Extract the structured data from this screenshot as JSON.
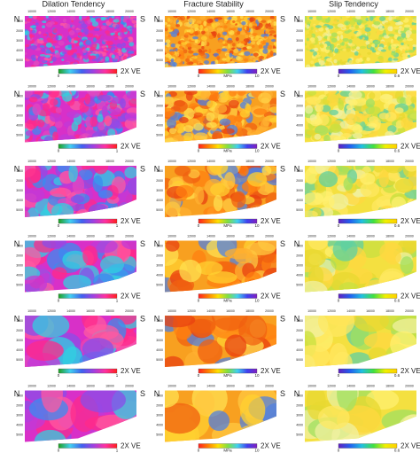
{
  "columns": [
    {
      "title": "Dilation Tendency",
      "colorbar": {
        "min": "0",
        "max": "1"
      }
    },
    {
      "title": "Fracture Stability",
      "colorbar": {
        "min": "0",
        "max": "10",
        "unit": "MPa"
      }
    },
    {
      "title": "Slip Tendency",
      "colorbar": {
        "min": "0",
        "max": "0.6"
      }
    }
  ],
  "orientation": {
    "north": "N",
    "south": "S"
  },
  "exaggeration": "2X VE",
  "x_axis_ticks": [
    "10000",
    "12000",
    "14000",
    "16000",
    "18000",
    "20000"
  ],
  "y_axis_ticks": [
    "1000",
    "2000",
    "3000",
    "4000",
    "5000"
  ]
}
